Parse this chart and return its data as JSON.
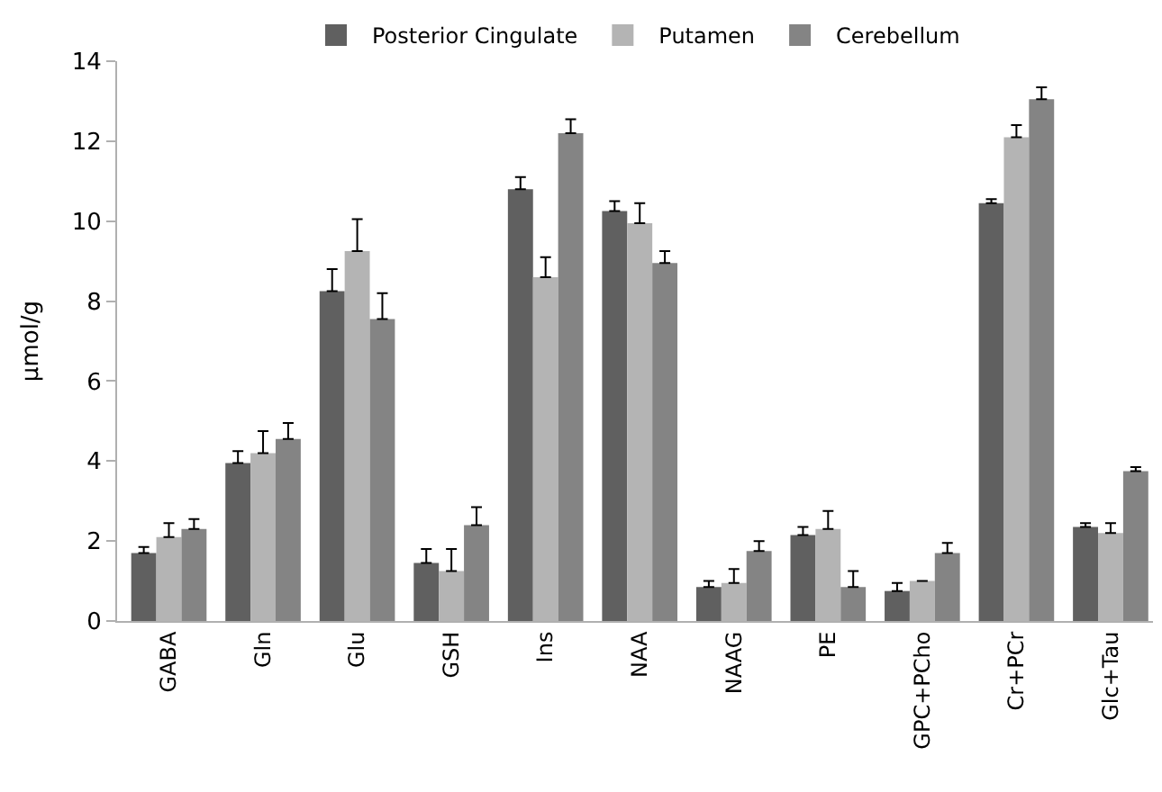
{
  "chart_data": {
    "type": "bar",
    "ylabel": "µmol/g",
    "categories": [
      "GABA",
      "Gln",
      "Glu",
      "GSH",
      "Ins",
      "NAA",
      "NAAG",
      "PE",
      "GPC+PCho",
      "Cr+PCr",
      "Glc+Tau"
    ],
    "series": [
      {
        "name": "Posterior Cingulate",
        "color": "#606060",
        "values": [
          1.7,
          3.95,
          8.25,
          1.45,
          10.8,
          10.25,
          0.85,
          2.15,
          0.75,
          10.45,
          2.35
        ],
        "errors": [
          [
            1.7,
            1.85
          ],
          [
            3.95,
            4.25
          ],
          [
            8.25,
            8.8
          ],
          [
            1.45,
            1.8
          ],
          [
            10.8,
            11.1
          ],
          [
            10.25,
            10.5
          ],
          [
            0.85,
            1.0
          ],
          [
            2.15,
            2.35
          ],
          [
            0.75,
            0.95
          ],
          [
            10.45,
            10.55
          ],
          [
            2.35,
            2.45
          ]
        ]
      },
      {
        "name": "Putamen",
        "color": "#b4b4b4",
        "values": [
          2.1,
          4.2,
          9.25,
          1.25,
          8.6,
          9.95,
          0.95,
          2.3,
          1.0,
          12.1,
          2.2
        ],
        "errors": [
          [
            2.1,
            2.45
          ],
          [
            4.2,
            4.75
          ],
          [
            9.25,
            10.05
          ],
          [
            1.25,
            1.8
          ],
          [
            8.6,
            9.1
          ],
          [
            9.95,
            10.45
          ],
          [
            0.95,
            1.3
          ],
          [
            2.3,
            2.75
          ],
          null,
          [
            12.1,
            12.4
          ],
          [
            2.2,
            2.45
          ]
        ]
      },
      {
        "name": "Cerebellum",
        "color": "#848484",
        "values": [
          2.3,
          4.55,
          7.55,
          2.4,
          12.2,
          8.95,
          1.75,
          0.85,
          1.7,
          13.05,
          3.75
        ],
        "errors": [
          [
            2.3,
            2.55
          ],
          [
            4.55,
            4.95
          ],
          [
            7.55,
            8.2
          ],
          [
            2.4,
            2.85
          ],
          [
            12.2,
            12.55
          ],
          [
            8.95,
            9.25
          ],
          [
            1.75,
            2.0
          ],
          [
            0.85,
            1.25
          ],
          [
            1.7,
            1.95
          ],
          [
            13.05,
            13.35
          ],
          [
            3.75,
            3.85
          ]
        ]
      }
    ],
    "ylim": [
      0,
      14
    ],
    "yticks": [
      0,
      2,
      4,
      6,
      8,
      10,
      12,
      14
    ],
    "grid": false,
    "legend": "top"
  }
}
